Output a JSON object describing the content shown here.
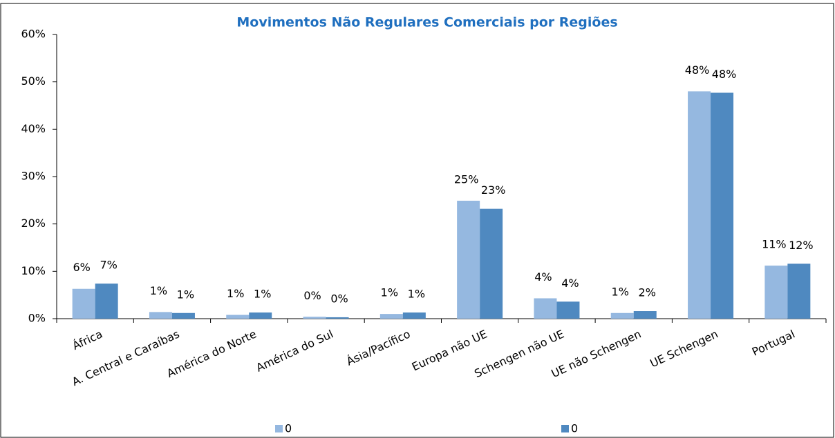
{
  "chart_data": {
    "type": "bar",
    "title": "Movimentos Não Regulares Comerciais por Regiões",
    "categories": [
      "África",
      "A. Central e Caraíbas",
      "América do Norte",
      "América do Sul",
      "Ásia/Pacífico",
      "Europa não UE",
      "Schengen não UE",
      "UE não Schengen",
      "UE Schengen",
      "Portugal"
    ],
    "series": [
      {
        "name": "0",
        "color": "#95b8e0",
        "values": [
          6.3,
          1.4,
          0.8,
          0.4,
          1.0,
          24.9,
          4.3,
          1.2,
          48.0,
          11.2
        ],
        "value_labels": [
          "6%",
          "1%",
          "1%",
          "0%",
          "1%",
          "25%",
          "4%",
          "1%",
          "48%",
          "11%"
        ]
      },
      {
        "name": "0",
        "color": "#4f89c0",
        "values": [
          7.4,
          1.2,
          1.3,
          0.3,
          1.3,
          23.2,
          3.6,
          1.6,
          47.7,
          11.6
        ],
        "value_labels": [
          "7%",
          "1%",
          "1%",
          "0%",
          "1%",
          "23%",
          "4%",
          "2%",
          "48%",
          "12%"
        ]
      }
    ],
    "ylim": [
      0,
      60
    ],
    "yticks": [
      {
        "value": 0,
        "label": "0%"
      },
      {
        "value": 10,
        "label": "10%"
      },
      {
        "value": 20,
        "label": "20%"
      },
      {
        "value": 30,
        "label": "30%"
      },
      {
        "value": 40,
        "label": "40%"
      },
      {
        "value": 50,
        "label": "50%"
      },
      {
        "value": 60,
        "label": "60%"
      }
    ],
    "grid": false,
    "legend": "bottom"
  }
}
